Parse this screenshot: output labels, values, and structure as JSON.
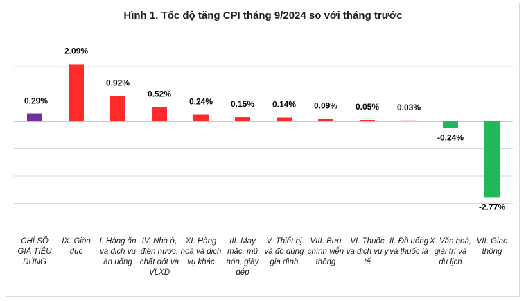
{
  "chart_data": {
    "type": "bar",
    "title": "Hình 1. Tốc độ tăng CPI tháng 9/2024 so với tháng trước",
    "xlabel": "",
    "ylabel": "",
    "ylim": [
      -3.0,
      2.5
    ],
    "grid": true,
    "categories": [
      "CHỈ SỐ GIÁ TIÊU DÙNG",
      "IX. Giáo dục",
      "I. Hàng ăn và dịch vụ ăn uống",
      "IV. Nhà ở, điện nước, chất đốt và VLXD",
      "XI. Hàng hoá và dịch vụ khác",
      "III. May mặc, mũ nón, giày dép",
      "V. Thiết bị và đồ dùng gia đình",
      "VIII. Bưu chính viễn thông",
      "VI. Thuốc và dịch vụ y tế",
      "II. Đồ uống và thuốc lá",
      "X. Văn hoá, giải trí và du lịch",
      "VII. Giao thông"
    ],
    "values": [
      0.29,
      2.09,
      0.92,
      0.52,
      0.24,
      0.15,
      0.14,
      0.09,
      0.05,
      0.03,
      -0.24,
      -2.77
    ],
    "value_labels": [
      "0.29%",
      "2.09%",
      "0.92%",
      "0.52%",
      "0.24%",
      "0.15%",
      "0.14%",
      "0.09%",
      "0.05%",
      "0.03%",
      "-0.24%",
      "-2.77%"
    ],
    "colors": {
      "overall": "#7030a0",
      "increase": "#ff2a2a",
      "decrease": "#1fb85a",
      "gridline": "#d9d9d9"
    }
  }
}
